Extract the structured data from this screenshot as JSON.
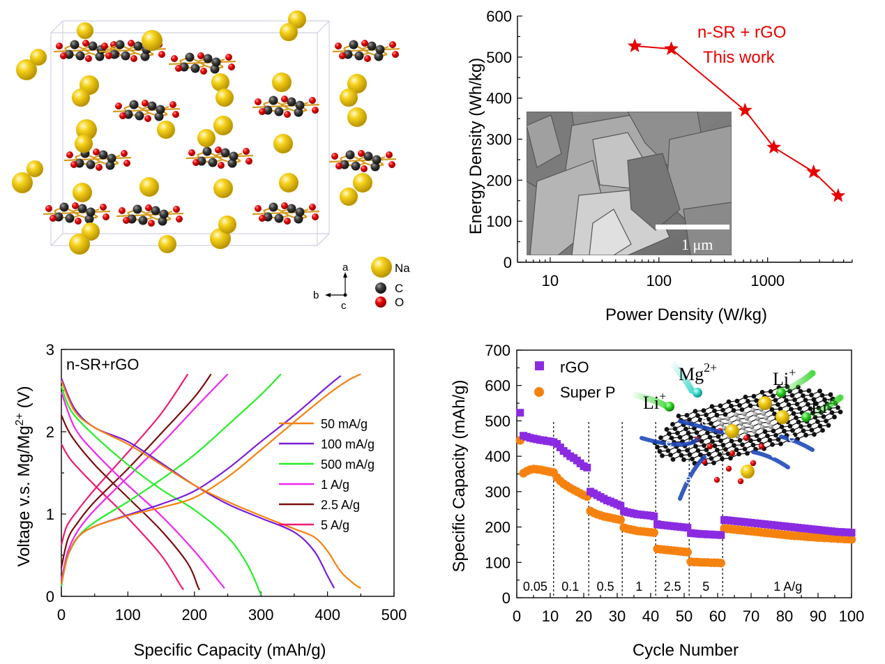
{
  "crystal": {
    "legend": [
      {
        "label": "Na",
        "color": "#f2cc0c"
      },
      {
        "label": "C",
        "color": "#3a3a3a"
      },
      {
        "label": "O",
        "color": "#e60000"
      }
    ],
    "axes": {
      "a": "a",
      "b": "b",
      "c": "c"
    }
  },
  "sem": {
    "scale_label": "1 μm"
  },
  "schematic": {
    "ions": [
      "Mg",
      "2+",
      "Li",
      "+"
    ],
    "electron": "e"
  },
  "chart_data": [
    {
      "type": "line",
      "title": "",
      "xlabel": "Power Density (W/kg)",
      "ylabel": "Energy Density (Wh/kg)",
      "xscale": "log",
      "xlim": [
        5,
        6000
      ],
      "ylim": [
        0,
        600
      ],
      "xticks": [
        10,
        100,
        1000
      ],
      "yticks": [
        0,
        100,
        200,
        300,
        400,
        500,
        600
      ],
      "tick_labels_x": [
        "10",
        "100",
        "1000"
      ],
      "tick_labels_y": [
        "0",
        "100",
        "200",
        "300",
        "400",
        "500",
        "600"
      ],
      "annotation": [
        "n-SR + rGO",
        "This work"
      ],
      "color": "#e60000",
      "x": [
        60,
        130,
        620,
        1140,
        2650,
        4450
      ],
      "y": [
        527,
        520,
        370,
        280,
        220,
        162
      ]
    },
    {
      "type": "line",
      "title": "n-SR+rGO",
      "xlabel": "Specific Capacity (mAh/g)",
      "ylabel_parts": [
        "Voltage v.s. Mg/Mg",
        "2+",
        " (V)"
      ],
      "xlim": [
        0,
        500
      ],
      "ylim": [
        0,
        3
      ],
      "xticks": [
        0,
        100,
        200,
        300,
        400,
        500
      ],
      "yticks": [
        0,
        1,
        2,
        3
      ],
      "tick_labels_x": [
        "0",
        "100",
        "200",
        "300",
        "400",
        "500"
      ],
      "tick_labels_y": [
        "0",
        "1",
        "2",
        "3"
      ],
      "legend_position": "right",
      "series": [
        {
          "name": "50 mA/g",
          "color": "#f5820f",
          "charge": [
            [
              0,
              0.15
            ],
            [
              10,
              0.5
            ],
            [
              25,
              0.72
            ],
            [
              50,
              0.85
            ],
            [
              100,
              0.98
            ],
            [
              150,
              1.08
            ],
            [
              200,
              1.2
            ],
            [
              250,
              1.45
            ],
            [
              300,
              1.78
            ],
            [
              350,
              2.12
            ],
            [
              400,
              2.45
            ],
            [
              430,
              2.62
            ],
            [
              450,
              2.7
            ]
          ],
          "discharge": [
            [
              0,
              2.62
            ],
            [
              20,
              2.25
            ],
            [
              50,
              2.05
            ],
            [
              100,
              1.85
            ],
            [
              150,
              1.6
            ],
            [
              200,
              1.35
            ],
            [
              250,
              1.15
            ],
            [
              300,
              0.98
            ],
            [
              350,
              0.82
            ],
            [
              380,
              0.72
            ],
            [
              400,
              0.55
            ],
            [
              420,
              0.3
            ],
            [
              440,
              0.15
            ],
            [
              450,
              0.1
            ]
          ]
        },
        {
          "name": "100 mA/g",
          "color": "#7a1ddb",
          "charge": [
            [
              0,
              0.15
            ],
            [
              10,
              0.5
            ],
            [
              25,
              0.72
            ],
            [
              50,
              0.85
            ],
            [
              100,
              0.99
            ],
            [
              150,
              1.12
            ],
            [
              200,
              1.28
            ],
            [
              250,
              1.55
            ],
            [
              300,
              1.88
            ],
            [
              350,
              2.2
            ],
            [
              400,
              2.55
            ],
            [
              420,
              2.68
            ]
          ],
          "discharge": [
            [
              0,
              2.65
            ],
            [
              20,
              2.28
            ],
            [
              50,
              2.05
            ],
            [
              100,
              1.88
            ],
            [
              150,
              1.62
            ],
            [
              200,
              1.35
            ],
            [
              250,
              1.12
            ],
            [
              300,
              0.95
            ],
            [
              350,
              0.78
            ],
            [
              380,
              0.55
            ],
            [
              400,
              0.25
            ],
            [
              410,
              0.1
            ]
          ]
        },
        {
          "name": "500 mA/g",
          "color": "#26ee26",
          "charge": [
            [
              0,
              0.12
            ],
            [
              8,
              0.45
            ],
            [
              25,
              0.72
            ],
            [
              50,
              0.9
            ],
            [
              100,
              1.15
            ],
            [
              150,
              1.42
            ],
            [
              200,
              1.72
            ],
            [
              250,
              2.08
            ],
            [
              300,
              2.45
            ],
            [
              330,
              2.7
            ]
          ],
          "discharge": [
            [
              0,
              2.55
            ],
            [
              15,
              2.25
            ],
            [
              50,
              1.95
            ],
            [
              100,
              1.6
            ],
            [
              150,
              1.3
            ],
            [
              200,
              1.05
            ],
            [
              250,
              0.72
            ],
            [
              280,
              0.38
            ],
            [
              300,
              0.02
            ]
          ]
        },
        {
          "name": "1 A/g",
          "color": "#ee26ee",
          "charge": [
            [
              0,
              0.2
            ],
            [
              10,
              0.55
            ],
            [
              25,
              0.8
            ],
            [
              50,
              1.05
            ],
            [
              100,
              1.45
            ],
            [
              150,
              1.85
            ],
            [
              200,
              2.28
            ],
            [
              250,
              2.7
            ]
          ],
          "discharge": [
            [
              0,
              2.48
            ],
            [
              20,
              2.05
            ],
            [
              50,
              1.75
            ],
            [
              100,
              1.35
            ],
            [
              150,
              0.98
            ],
            [
              200,
              0.55
            ],
            [
              240,
              0.15
            ],
            [
              245,
              0.1
            ]
          ]
        },
        {
          "name": "2.5 A/g",
          "color": "#7a0d0d",
          "charge": [
            [
              0,
              0.35
            ],
            [
              10,
              0.7
            ],
            [
              25,
              0.9
            ],
            [
              50,
              1.15
            ],
            [
              100,
              1.55
            ],
            [
              150,
              1.98
            ],
            [
              200,
              2.42
            ],
            [
              225,
              2.7
            ]
          ],
          "discharge": [
            [
              0,
              2.2
            ],
            [
              15,
              1.95
            ],
            [
              50,
              1.6
            ],
            [
              100,
              1.2
            ],
            [
              150,
              0.8
            ],
            [
              190,
              0.4
            ],
            [
              205,
              0.12
            ],
            [
              208,
              0.08
            ]
          ]
        },
        {
          "name": "5 A/g",
          "color": "#ee1a72",
          "charge": [
            [
              0,
              0.62
            ],
            [
              8,
              0.85
            ],
            [
              25,
              1.05
            ],
            [
              50,
              1.3
            ],
            [
              100,
              1.75
            ],
            [
              150,
              2.22
            ],
            [
              190,
              2.7
            ]
          ],
          "discharge": [
            [
              0,
              1.85
            ],
            [
              15,
              1.65
            ],
            [
              50,
              1.35
            ],
            [
              100,
              0.95
            ],
            [
              150,
              0.5
            ],
            [
              180,
              0.12
            ],
            [
              182,
              0.1
            ]
          ]
        }
      ]
    },
    {
      "type": "scatter",
      "xlabel": "Cycle Number",
      "ylabel": "Specific Capacity (mAh/g)",
      "xlim": [
        0,
        100
      ],
      "ylim": [
        0,
        700
      ],
      "xticks": [
        0,
        10,
        20,
        30,
        40,
        50,
        60,
        70,
        80,
        90,
        100
      ],
      "yticks": [
        0,
        100,
        200,
        300,
        400,
        500,
        600,
        700
      ],
      "tick_labels_x": [
        "0",
        "10",
        "20",
        "30",
        "40",
        "50",
        "60",
        "70",
        "80",
        "90",
        "100"
      ],
      "tick_labels_y": [
        "0",
        "100",
        "200",
        "300",
        "400",
        "500",
        "600",
        "700"
      ],
      "legend_position": "top-left",
      "dividers": [
        11,
        21.5,
        31.5,
        41.5,
        51.5,
        61.5
      ],
      "rate_labels": [
        {
          "text": "0.05",
          "x": 5.5
        },
        {
          "text": "0.1",
          "x": 16
        },
        {
          "text": "0.5",
          "x": 26.5
        },
        {
          "text": "1",
          "x": 36.5
        },
        {
          "text": "2.5",
          "x": 46.5
        },
        {
          "text": "5",
          "x": 56.5
        },
        {
          "text": "1 A/g",
          "x": 81
        }
      ],
      "series": [
        {
          "name": "rGO",
          "color": "#8a2be2",
          "marker": "square",
          "values": [
            523,
            458,
            455,
            452,
            450,
            448,
            446,
            445,
            443,
            442,
            440,
            435,
            425,
            415,
            408,
            400,
            395,
            388,
            380,
            372,
            368,
            300,
            295,
            290,
            285,
            280,
            275,
            272,
            268,
            264,
            260,
            245,
            242,
            240,
            238,
            236,
            235,
            234,
            233,
            232,
            230,
            208,
            206,
            205,
            204,
            203,
            202,
            201,
            200,
            199,
            198,
            183,
            182,
            181,
            180,
            180,
            179,
            179,
            178,
            178,
            177,
            220,
            219,
            218,
            217,
            216,
            215,
            214,
            213,
            212,
            211,
            210,
            209,
            208,
            207,
            206,
            205,
            204,
            203,
            202,
            201,
            200,
            199,
            198,
            197,
            196,
            195,
            194,
            193,
            192,
            191,
            190,
            189,
            188,
            187,
            186,
            186,
            185,
            185,
            184
          ]
        },
        {
          "name": "Super P",
          "color": "#f5820f",
          "marker": "circle",
          "values": [
            445,
            352,
            358,
            362,
            364,
            363,
            362,
            360,
            358,
            356,
            354,
            340,
            330,
            322,
            316,
            310,
            305,
            300,
            295,
            290,
            286,
            245,
            240,
            236,
            233,
            230,
            228,
            226,
            224,
            222,
            220,
            198,
            195,
            193,
            191,
            189,
            188,
            187,
            186,
            185,
            184,
            138,
            137,
            136,
            135,
            134,
            133,
            132,
            131,
            130,
            129,
            102,
            101,
            101,
            100,
            100,
            100,
            99,
            99,
            99,
            98,
            196,
            195,
            194,
            193,
            192,
            191,
            190,
            189,
            188,
            187,
            186,
            185,
            184,
            183,
            182,
            181,
            180,
            179,
            178,
            177,
            176,
            175,
            175,
            174,
            173,
            172,
            172,
            171,
            170,
            170,
            169,
            169,
            168,
            168,
            167,
            167,
            166,
            166,
            165
          ]
        }
      ]
    }
  ]
}
